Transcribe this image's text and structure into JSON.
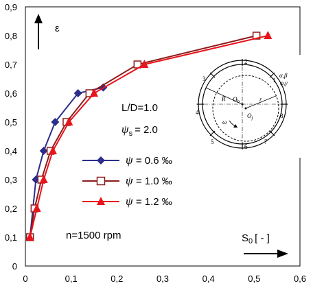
{
  "chart_data": {
    "type": "line",
    "xlabel": "S",
    "xlabel_sub": "0",
    "xlabel_unit": "[ - ]",
    "ylabel": "ε",
    "xlim": [
      0,
      0.6
    ],
    "ylim": [
      0,
      0.9
    ],
    "x_ticks": [
      "0",
      "0,1",
      "0,2",
      "0,3",
      "0,4",
      "0,5",
      "0,6"
    ],
    "y_ticks": [
      "0",
      "0,1",
      "0,2",
      "0,3",
      "0,4",
      "0,5",
      "0,6",
      "0,7",
      "0,8",
      "0,9"
    ],
    "grid": true,
    "annotations": {
      "ld": "L/D=1.0",
      "psi_s_symbol": "ψ",
      "psi_s_sub": "s",
      "psi_s_value": "= 2.0",
      "speed": "n=1500 rpm"
    },
    "series": [
      {
        "name": "ψ = 0.6 ‰",
        "legend_value": "= 0.6",
        "color": "#2b2e8a",
        "marker": "diamond",
        "points": [
          [
            0.01,
            0.1
          ],
          [
            0.023,
            0.3
          ],
          [
            0.04,
            0.4
          ],
          [
            0.065,
            0.5
          ],
          [
            0.115,
            0.6
          ],
          [
            0.17,
            0.62
          ]
        ]
      },
      {
        "name": "ψ = 1.0 ‰",
        "legend_value": "= 1.0",
        "color": "#8b1a1a",
        "marker": "square-open",
        "points": [
          [
            0.01,
            0.1
          ],
          [
            0.02,
            0.2
          ],
          [
            0.035,
            0.3
          ],
          [
            0.055,
            0.4
          ],
          [
            0.09,
            0.5
          ],
          [
            0.14,
            0.6
          ],
          [
            0.245,
            0.7
          ],
          [
            0.505,
            0.8
          ]
        ]
      },
      {
        "name": "ψ = 1.2 ‰",
        "legend_value": "= 1.2",
        "color": "#e8141c",
        "marker": "triangle",
        "points": [
          [
            0.01,
            0.1
          ],
          [
            0.025,
            0.2
          ],
          [
            0.04,
            0.3
          ],
          [
            0.06,
            0.4
          ],
          [
            0.095,
            0.5
          ],
          [
            0.15,
            0.6
          ],
          [
            0.26,
            0.7
          ],
          [
            0.53,
            0.8
          ]
        ]
      }
    ],
    "inset": {
      "labels": [
        "1",
        "2",
        "3",
        "4",
        "5",
        "6",
        "7",
        "8"
      ],
      "R": "R",
      "r": "r",
      "Ob": "O",
      "Ob_sub": "b",
      "Oj": "O",
      "Oj_sub": "j",
      "omega": "ω",
      "ab": "α,β",
      "pg": "φ,γ"
    }
  }
}
